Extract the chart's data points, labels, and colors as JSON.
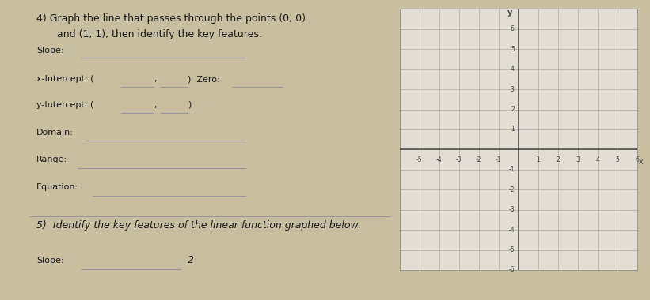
{
  "bg_color": "#c8bfa0",
  "paper_color": "#dedad0",
  "paper_color2": "#e2ded4",
  "text_color": "#1a1a1a",
  "grid_color": "#b0aaa0",
  "axis_color": "#444444",
  "border_color": "#999999",
  "q4_line1": "4) Graph the line that passes through the points (0, 0)",
  "q4_line2": "   and (1, 1), then identify the key features.",
  "slope_lbl": "Slope:",
  "xint_lbl": "x-Intercept: (___,___)",
  "zero_lbl": "Zero:",
  "yint_lbl": "y-Intercept: (___,___)",
  "domain_lbl": "Domain:",
  "range_lbl": "Range:",
  "equation_lbl": "Equation:",
  "q5_text": "5)  Identify the key features of the linear function graphed below.",
  "slope5_lbl": "Slope:",
  "slope5_val": "2",
  "xlim": [
    -6,
    6
  ],
  "ylim": [
    -6,
    7
  ],
  "xlabel": "x",
  "ylabel": "y",
  "fs_title": 9.0,
  "fs_label": 8.0,
  "fs_tick": 6.0
}
